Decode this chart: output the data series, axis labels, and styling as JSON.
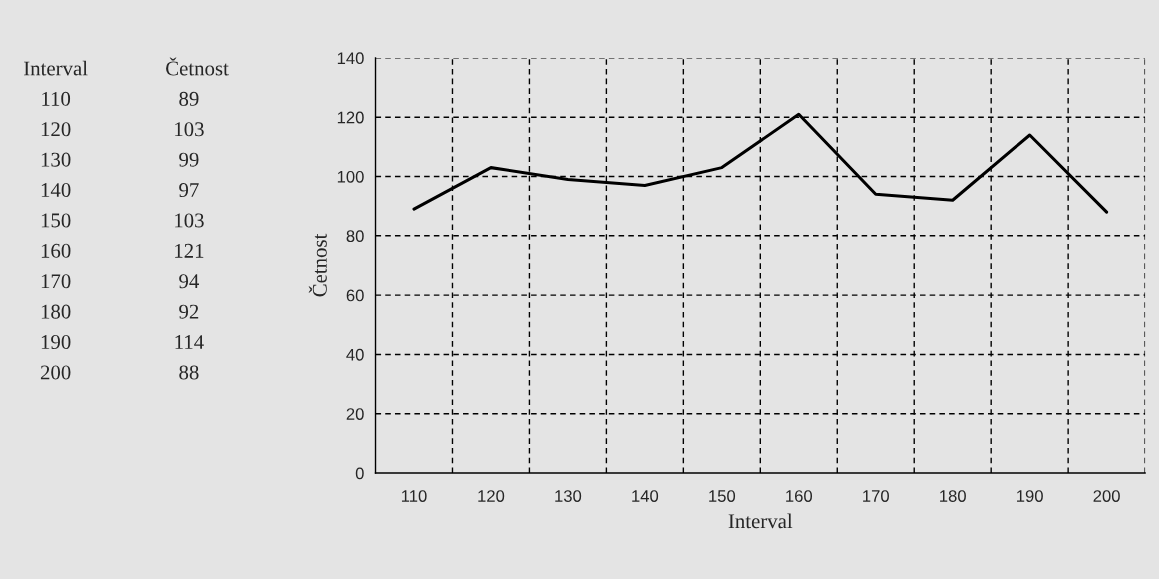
{
  "chart_data": {
    "type": "line",
    "xlabel": "Interval",
    "ylabel": "Četnost",
    "categories": [
      "110",
      "120",
      "130",
      "140",
      "150",
      "160",
      "170",
      "180",
      "190",
      "200"
    ],
    "values": [
      89,
      103,
      99,
      97,
      103,
      121,
      94,
      92,
      114,
      88
    ],
    "color": "#000000",
    "ylim": [
      0,
      140
    ],
    "yticks": [
      0,
      20,
      40,
      60,
      80,
      100,
      120,
      140
    ],
    "grid": true,
    "marker": "none",
    "line_style": "solid",
    "annotations": [
      "Interval",
      "Četnost",
      "110",
      "89",
      "120",
      "103",
      "130",
      "99",
      "140",
      "97",
      "150",
      "103",
      "160",
      "121",
      "170",
      "94",
      "180",
      "92",
      "190",
      "114",
      "200",
      "88"
    ]
  }
}
